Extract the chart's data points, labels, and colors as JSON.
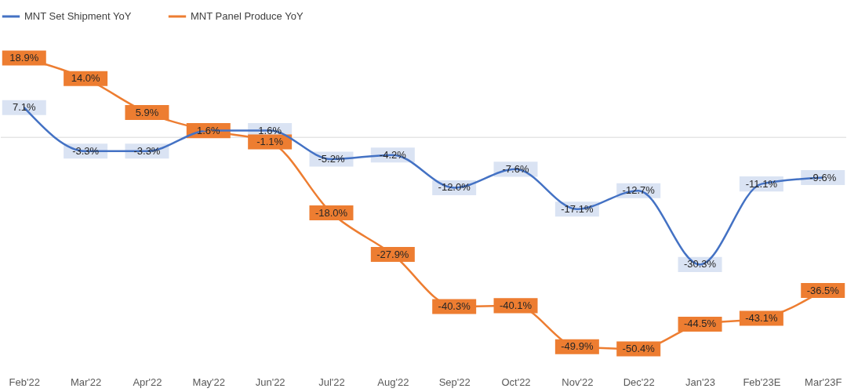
{
  "chart_data": {
    "type": "line",
    "categories": [
      "Feb'22",
      "Mar'22",
      "Apr'22",
      "May'22",
      "Jun'22",
      "Jul'22",
      "Aug'22",
      "Sep'22",
      "Oct'22",
      "Nov'22",
      "Dec'22",
      "Jan'23",
      "Feb'23E",
      "Mar'23F"
    ],
    "series": [
      {
        "name": "MNT Set Shipment YoY",
        "color": "#4472c4",
        "values": [
          7.1,
          -3.3,
          -3.3,
          1.6,
          1.6,
          -5.2,
          -4.2,
          -12.0,
          -7.6,
          -17.1,
          -12.7,
          -30.3,
          -11.1,
          -9.6
        ],
        "value_labels": [
          "7.1%",
          "-3.3%",
          "-3.3%",
          null,
          "1.6%",
          "-5.2%",
          "-4.2%",
          "-12.0%",
          "-7.6%",
          "-17.1%",
          "-12.7%",
          "-30.3%",
          "-11.1%",
          "-9.6%"
        ]
      },
      {
        "name": "MNT Panel Produce YoY",
        "color": "#ed7d31",
        "values": [
          18.9,
          14.0,
          5.9,
          1.6,
          -1.1,
          -18.0,
          -27.9,
          -40.3,
          -40.1,
          -49.9,
          -50.4,
          -44.5,
          -43.1,
          -36.5
        ],
        "value_labels": [
          "18.9%",
          "14.0%",
          "5.9%",
          "1.6%",
          "-1.1%",
          "-18.0%",
          "-27.9%",
          "-40.3%",
          "-40.1%",
          "-49.9%",
          "-50.4%",
          "-44.5%",
          "-43.1%",
          "-36.5%"
        ]
      }
    ],
    "ref_lines": [
      {
        "axis": "y",
        "value": 0,
        "color": "#d9d9d9"
      }
    ],
    "legend": "top",
    "grid": false,
    "line_style": "solid"
  }
}
